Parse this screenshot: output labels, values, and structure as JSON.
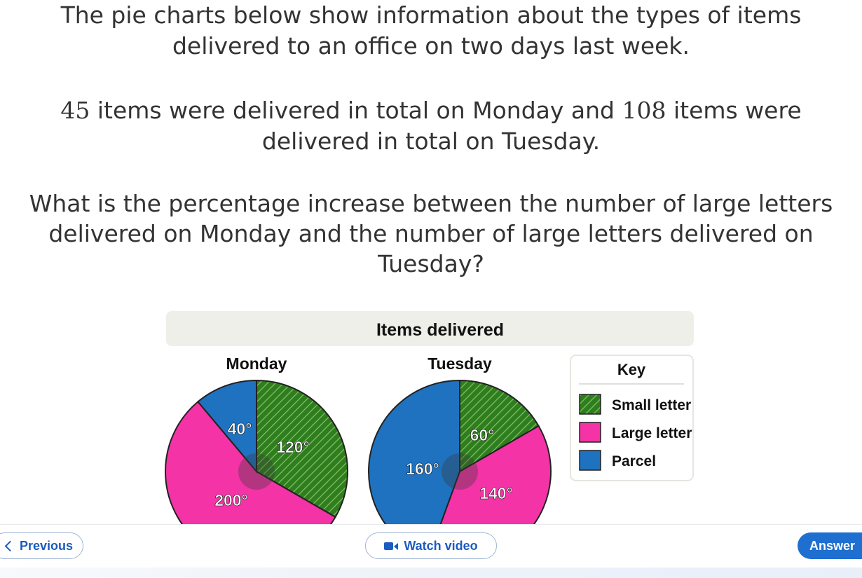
{
  "question": {
    "line1": "The pie charts below show information about the types of items",
    "line2": "delivered to an office on two days last week.",
    "p2_num1": "45",
    "p2_text1": " items were delivered in total on Monday and ",
    "p2_num2": "108",
    "p2_text2": " items were",
    "p2_line2": "delivered in total on Tuesday.",
    "p3_line1": "What is the percentage increase between the number of large letters",
    "p3_line2": "delivered on Monday and the number of large letters delivered on",
    "p3_line3": "Tuesday?"
  },
  "chart_data": {
    "type": "pie",
    "title": "Items delivered",
    "charts": [
      {
        "name": "Monday",
        "slices": [
          {
            "category": "Small letter",
            "angle_label": "120°",
            "degrees": 120
          },
          {
            "category": "Large letter",
            "angle_label": "200°",
            "degrees": 200
          },
          {
            "category": "Parcel",
            "angle_label": "40°",
            "degrees": 40
          }
        ]
      },
      {
        "name": "Tuesday",
        "slices": [
          {
            "category": "Small letter",
            "angle_label": "60°",
            "degrees": 60
          },
          {
            "category": "Large letter",
            "angle_label": "140°",
            "degrees": 140
          },
          {
            "category": "Parcel",
            "angle_label": "160°",
            "degrees": 160
          }
        ]
      }
    ],
    "legend": {
      "title": "Key",
      "position": "right",
      "entries": [
        {
          "label": "Small letter",
          "color": "#2e7d1e",
          "pattern": "hatched"
        },
        {
          "label": "Large letter",
          "color": "#f433a6"
        },
        {
          "label": "Parcel",
          "color": "#1e72c0"
        }
      ]
    }
  },
  "colors": {
    "small_letter": "#2e7d1e",
    "large_letter": "#f433a6",
    "parcel": "#1e72c0",
    "accent": "#1f6fd1"
  },
  "footer": {
    "previous_label": "Previous",
    "video_label": "Watch video",
    "answer_label": "Answer"
  },
  "icons": [
    "chevron-left-icon",
    "video-camera-icon"
  ]
}
